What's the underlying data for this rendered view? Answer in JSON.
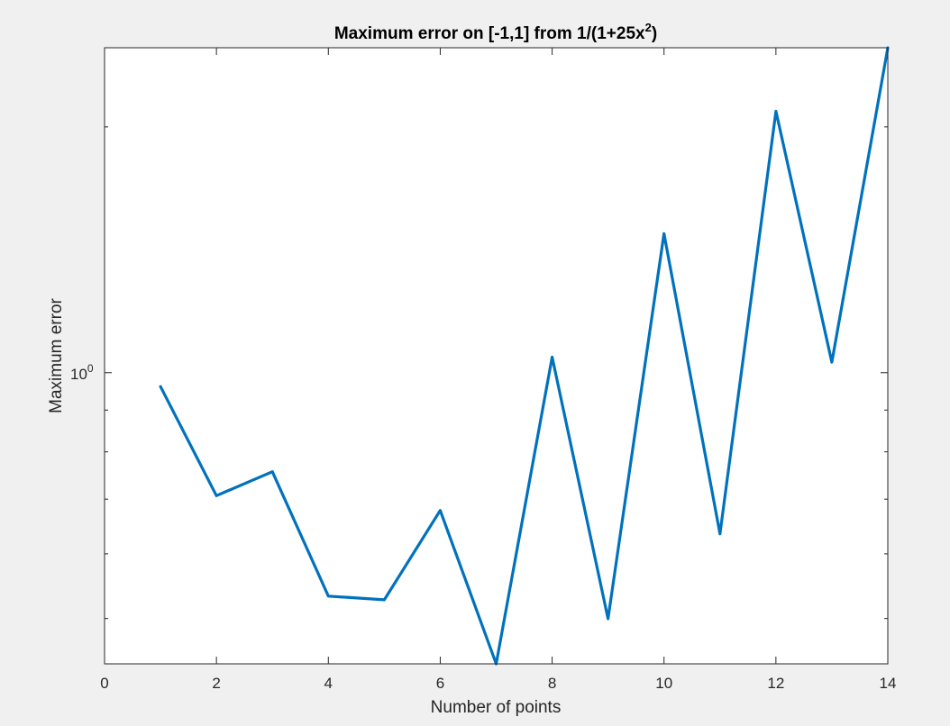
{
  "chart_data": {
    "type": "line",
    "title": {
      "prefix": "Maximum error on [-1,1] from 1/(1+25x",
      "superscript": "2",
      "suffix": ")"
    },
    "xlabel": "Number of points",
    "ylabel": "Maximum error",
    "xlim": [
      0,
      14
    ],
    "xticks": [
      0,
      2,
      4,
      6,
      8,
      10,
      12,
      14
    ],
    "xtick_labels": [
      "0",
      "2",
      "4",
      "6",
      "8",
      "10",
      "12",
      "14"
    ],
    "yscale": "log",
    "ylim": [
      0.44,
      2.5
    ],
    "ytick_label": {
      "base": "10",
      "exponent": "0",
      "value": 1
    },
    "yminor_ticks": [
      0.5,
      0.6,
      0.7,
      0.8,
      0.9,
      2
    ],
    "grid": false,
    "line_color": "#0072BD",
    "series": [
      {
        "x": [
          1,
          2,
          3,
          4,
          5,
          6,
          7,
          8,
          9,
          10,
          11,
          12,
          13,
          14
        ],
        "y": [
          0.9615,
          0.7069,
          0.7563,
          0.5326,
          0.5271,
          0.6781,
          0.44,
          1.0452,
          0.4997,
          1.48,
          0.6347,
          2.09,
          1.03,
          2.5
        ]
      }
    ]
  }
}
